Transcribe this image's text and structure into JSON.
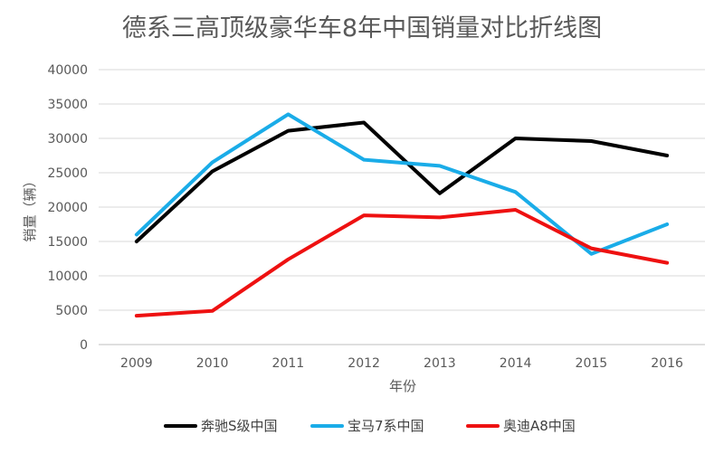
{
  "chart_data": {
    "type": "line",
    "title": "德系三高顶级豪华车8年中国销量对比折线图",
    "xlabel": "年份",
    "ylabel": "销量（辆）",
    "categories": [
      "2009",
      "2010",
      "2011",
      "2012",
      "2013",
      "2014",
      "2015",
      "2016"
    ],
    "ylim": [
      0,
      40000
    ],
    "yticks": [
      0,
      5000,
      10000,
      15000,
      20000,
      25000,
      30000,
      35000,
      40000
    ],
    "grid": true,
    "legend_position": "bottom",
    "series": [
      {
        "name": "奔驰S级中国",
        "color": "#000000",
        "values": [
          15000,
          25200,
          31100,
          32300,
          22000,
          30000,
          29600,
          27500
        ]
      },
      {
        "name": "宝马7系中国",
        "color": "#1aace8",
        "values": [
          16000,
          26500,
          33500,
          26900,
          26000,
          22200,
          13200,
          17500
        ]
      },
      {
        "name": "奥迪A8中国",
        "color": "#ee1111",
        "values": [
          4200,
          4900,
          12400,
          18800,
          18500,
          19600,
          14000,
          11900
        ]
      }
    ]
  }
}
